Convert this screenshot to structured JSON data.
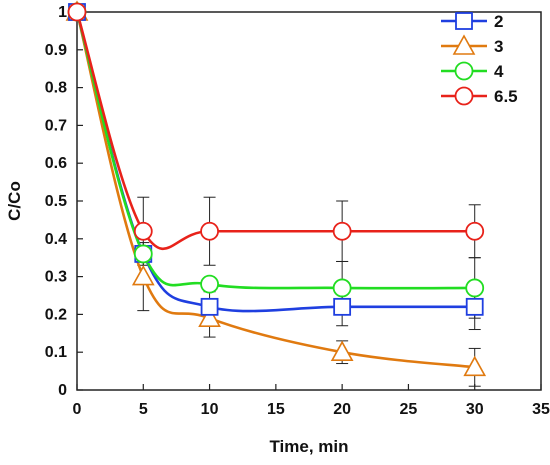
{
  "chart_data": {
    "type": "line",
    "xlabel": "Time, min",
    "ylabel": "C/Co",
    "xlim": [
      0,
      35
    ],
    "ylim": [
      0,
      1
    ],
    "x_ticks": [
      "0",
      "5",
      "10",
      "15",
      "20",
      "25",
      "30",
      "35"
    ],
    "y_ticks": [
      "0",
      "0.1",
      "0.2",
      "0.3",
      "0.4",
      "0.5",
      "0.6",
      "0.7",
      "0.8",
      "0.9",
      "1"
    ],
    "grid": false,
    "legend_position": "top-right",
    "series": [
      {
        "name": "2",
        "color": "#1f3fe0",
        "marker": "square",
        "x": [
          0,
          5,
          10,
          20,
          30
        ],
        "y": [
          1.0,
          0.36,
          0.22,
          0.22,
          0.22
        ],
        "err": [
          0.0,
          0.0,
          0.04,
          0.05,
          0.06
        ]
      },
      {
        "name": "3",
        "color": "#e07a10",
        "marker": "triangle",
        "x": [
          0,
          5,
          10,
          20,
          30
        ],
        "y": [
          1.0,
          0.3,
          0.19,
          0.1,
          0.06
        ],
        "err": [
          0.0,
          0.09,
          0.05,
          0.03,
          0.05
        ]
      },
      {
        "name": "4",
        "color": "#22dd22",
        "marker": "circle",
        "x": [
          0,
          5,
          10,
          20,
          30
        ],
        "y": [
          1.0,
          0.36,
          0.28,
          0.27,
          0.27
        ],
        "err": [
          0.0,
          0.0,
          0.0,
          0.07,
          0.08
        ]
      },
      {
        "name": "6.5",
        "color": "#e8221a",
        "marker": "circle",
        "x": [
          0,
          5,
          10,
          20,
          30
        ],
        "y": [
          1.0,
          0.42,
          0.42,
          0.42,
          0.42
        ],
        "err": [
          0.0,
          0.09,
          0.09,
          0.08,
          0.07
        ]
      }
    ]
  }
}
